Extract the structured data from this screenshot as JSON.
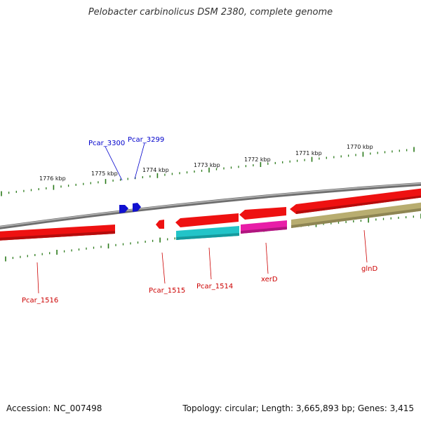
{
  "title": "Pelobacter carbinolicus DSM 2380, complete genome",
  "footer": {
    "accession": "Accession: NC_007498",
    "summary": "Topology: circular; Length: 3,665,893 bp; Genes: 3,415"
  },
  "scale_labels": [
    "1776 kbp",
    "1775 kbp",
    "1774 kbp",
    "1773 kbp",
    "1772 kbp",
    "1771 kbp",
    "1770 kbp"
  ],
  "gene_labels": {
    "pcar_3300": "Pcar_3300",
    "pcar_3299": "Pcar_3299",
    "pcar_1516": "Pcar_1516",
    "pcar_1515": "Pcar_1515",
    "pcar_1514": "Pcar_1514",
    "xerd": "xerD",
    "glnd": "glnD"
  },
  "colors": {
    "backbone": "#8a8a8a",
    "cds": "#ee1111",
    "trna_blue": "#1111dd",
    "tick_green": "#2a7a1a",
    "cog_cyan": "#22c4c8",
    "cog_magenta": "#e81ea8",
    "cog_olive": "#b8ad70",
    "label_red": "#cc0000",
    "label_blue": "#0000cc"
  }
}
